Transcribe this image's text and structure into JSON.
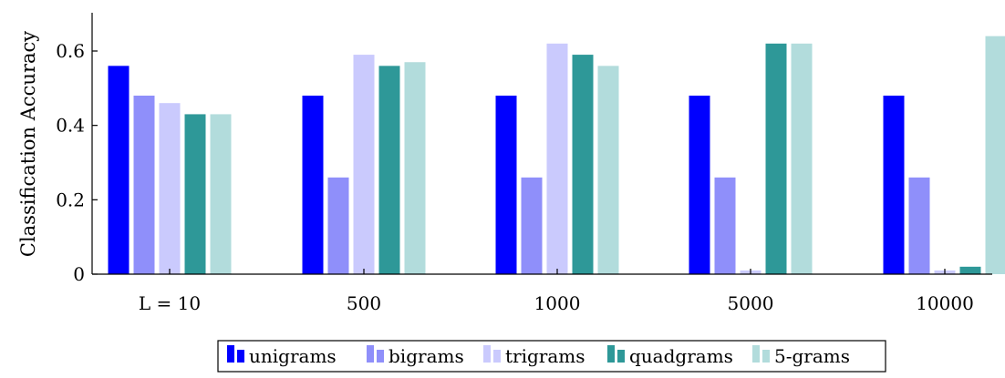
{
  "chart_data": {
    "type": "bar",
    "title": "",
    "xlabel": "",
    "ylabel": "Classification Accuracy",
    "categories": [
      "L = 10",
      "500",
      "1000",
      "5000",
      "10000"
    ],
    "ylim": [
      0,
      0.7
    ],
    "yticks": [
      0,
      0.2,
      0.4,
      0.6
    ],
    "ytick_labels": [
      "0",
      "0.2",
      "0.4",
      "0.6"
    ],
    "grid": false,
    "legend_position": "bottom",
    "series": [
      {
        "name": "unigrams",
        "color": "#0000ff",
        "values": [
          0.56,
          0.48,
          0.48,
          0.48,
          0.48
        ]
      },
      {
        "name": "bigrams",
        "color": "#8f8ffa",
        "values": [
          0.48,
          0.26,
          0.26,
          0.26,
          0.26
        ]
      },
      {
        "name": "trigrams",
        "color": "#cacafd",
        "values": [
          0.46,
          0.59,
          0.62,
          0.01,
          0.01
        ]
      },
      {
        "name": "quadgrams",
        "color": "#2e9898",
        "values": [
          0.43,
          0.56,
          0.59,
          0.62,
          0.02
        ]
      },
      {
        "name": "5-grams",
        "color": "#b2dcdc",
        "values": [
          0.43,
          0.57,
          0.56,
          0.62,
          0.64
        ]
      }
    ]
  }
}
